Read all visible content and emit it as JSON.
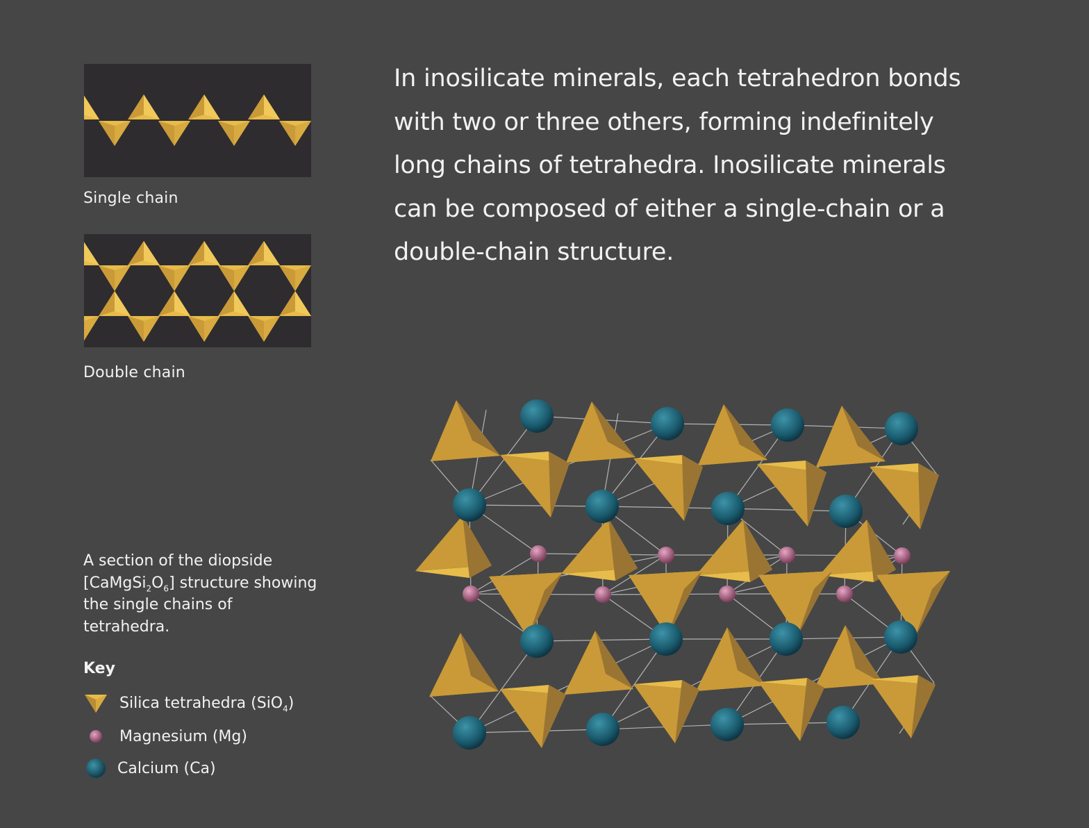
{
  "captions": {
    "single_chain": "Single chain",
    "double_chain": "Double chain"
  },
  "intro": "In inosilicate minerals, each tetrahedron bonds with two or three others, forming indefinitely long chains of tetrahedra. Inosilicate minerals can be composed of either a single-chain or a double-chain structure.",
  "diopside_caption": {
    "text_before": "A section of the diopside [CaMgSi",
    "sub1": "2",
    "text_mid": "O",
    "sub2": "6",
    "text_after": "] structure showing the single chains of tetrahedra."
  },
  "key": {
    "title": "Key",
    "silica": {
      "label_before": "Silica tetrahedra (SiO",
      "sub": "4",
      "label_after": ")",
      "icon": "tetrahedron-icon",
      "color": "#e0b544"
    },
    "magnesium": {
      "label": "Magnesium (Mg)",
      "icon": "magnesium-atom-icon",
      "color": "#b46a8e"
    },
    "calcium": {
      "label": "Calcium (Ca)",
      "icon": "calcium-atom-icon",
      "color": "#1e6478"
    }
  },
  "colors": {
    "background": "#464646",
    "panel": "#2e2c2f",
    "tetra_light": "#e8bc4a",
    "tetra_mid": "#c99a37",
    "tetra_dark": "#9a7433",
    "bond": "#c8c8c8"
  }
}
